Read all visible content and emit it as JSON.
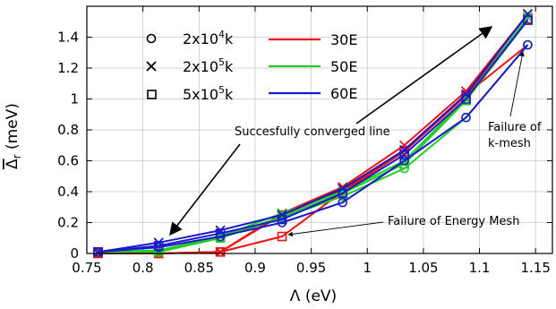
{
  "chart_data": {
    "type": "line",
    "xlabel": "Λ (eV)",
    "ylabel": "Δ",
    "ylabel_sub": "r",
    "ylabel_unit": " (meV)",
    "xlim": [
      0.75,
      1.165
    ],
    "ylim": [
      0,
      1.6
    ],
    "xticks": [
      0.75,
      0.8,
      0.85,
      0.9,
      0.95,
      1,
      1.05,
      1.1,
      1.15
    ],
    "yticks": [
      0,
      0.2,
      0.4,
      0.6,
      0.8,
      1,
      1.2,
      1.4
    ],
    "x": [
      0.76,
      0.814,
      0.869,
      0.924,
      0.978,
      1.033,
      1.088,
      1.143
    ],
    "marker_legend": [
      {
        "marker": "circle",
        "base": "2x10",
        "exp": "4",
        "suffix": "k"
      },
      {
        "marker": "cross",
        "base": "2x10",
        "exp": "5",
        "suffix": "k"
      },
      {
        "marker": "square",
        "base": "5x10",
        "exp": "5",
        "suffix": "k"
      }
    ],
    "series": [
      {
        "name": "30E",
        "color": "#ee1111",
        "marker": "circle",
        "values": [
          0,
          0,
          0.01,
          0.25,
          0.41,
          0.67,
          1.03,
          1.35
        ]
      },
      {
        "name": "30E",
        "color": "#ee1111",
        "marker": "cross",
        "values": [
          0,
          0,
          0.01,
          0.26,
          0.43,
          0.7,
          1.05,
          1.55
        ]
      },
      {
        "name": "30E",
        "color": "#ee1111",
        "marker": "square",
        "values": [
          0,
          0,
          0.01,
          0.11,
          0.4,
          0.66,
          1.02,
          1.52
        ]
      },
      {
        "name": "50E",
        "color": "#22cc22",
        "marker": "circle",
        "values": [
          0.01,
          0.01,
          0.1,
          0.23,
          0.37,
          0.55,
          0.88,
          1.35
        ]
      },
      {
        "name": "50E",
        "color": "#22cc22",
        "marker": "cross",
        "values": [
          0.01,
          0.02,
          0.11,
          0.26,
          0.4,
          0.6,
          1.0,
          1.53
        ]
      },
      {
        "name": "50E",
        "color": "#22cc22",
        "marker": "square",
        "values": [
          0.01,
          0.01,
          0.1,
          0.24,
          0.39,
          0.58,
          0.99,
          1.51
        ]
      },
      {
        "name": "60E",
        "color": "#1a1acc",
        "marker": "circle",
        "values": [
          0.01,
          0.04,
          0.11,
          0.2,
          0.33,
          0.6,
          0.88,
          1.35
        ]
      },
      {
        "name": "60E",
        "color": "#1a1acc",
        "marker": "cross",
        "values": [
          0.01,
          0.07,
          0.15,
          0.25,
          0.42,
          0.67,
          1.03,
          1.55
        ]
      },
      {
        "name": "60E",
        "color": "#1a1acc",
        "marker": "square",
        "values": [
          0.01,
          0.05,
          0.13,
          0.22,
          0.39,
          0.64,
          1.0,
          1.51
        ]
      }
    ],
    "color_legend": [
      {
        "name": "30E",
        "color": "#ee1111"
      },
      {
        "name": "50E",
        "color": "#22cc22"
      },
      {
        "name": "60E",
        "color": "#1a1acc"
      }
    ],
    "annotations": [
      {
        "id": "converged",
        "text": "Succesfully converged line"
      },
      {
        "id": "kmesh",
        "lines": [
          "Failure of",
          "k-mesh"
        ]
      },
      {
        "id": "emesh",
        "text": "Failure of Energy Mesh"
      }
    ]
  }
}
